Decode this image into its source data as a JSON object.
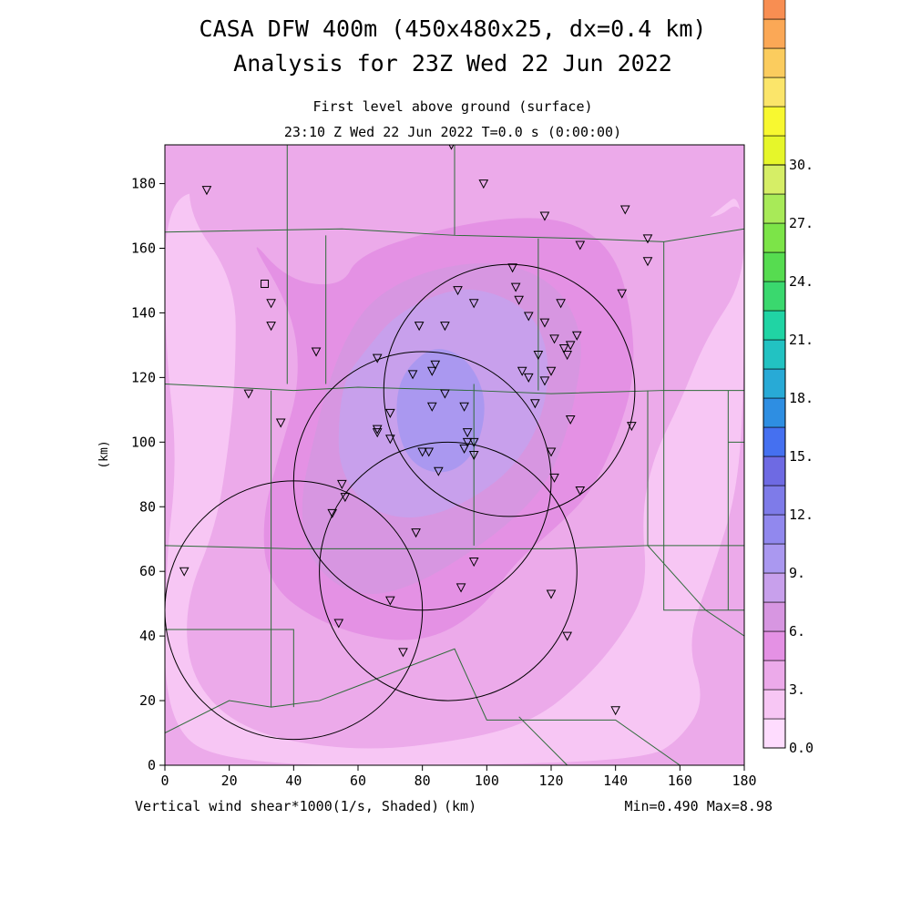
{
  "chart_data": {
    "type": "heatmap",
    "title": "CASA DFW 400m (450x480x25, dx=0.4 km)",
    "subtitle": "Analysis for 23Z Wed 22 Jun 2022",
    "level_label": "First level above ground (surface)",
    "time_label": "23:10 Z Wed 22 Jun 2022   T=0.0 s (0:00:00)",
    "xlabel": "(km)",
    "ylabel": "(km)",
    "field_label": "Vertical wind shear*1000(1/s, Shaded)",
    "stats_label": "Min=0.490 Max=8.98",
    "xlim": [
      0,
      180
    ],
    "ylim": [
      0,
      192
    ],
    "x_ticks": [
      "0",
      "20",
      "40",
      "60",
      "80",
      "100",
      "120",
      "140",
      "160",
      "180"
    ],
    "y_ticks": [
      "0",
      "20",
      "40",
      "60",
      "80",
      "100",
      "120",
      "140",
      "160",
      "180"
    ],
    "x_tick_values": [
      0,
      20,
      40,
      60,
      80,
      100,
      120,
      140,
      160,
      180
    ],
    "y_tick_values": [
      0,
      20,
      40,
      60,
      80,
      100,
      120,
      140,
      160,
      180
    ],
    "grid": false,
    "min": 0.49,
    "max": 8.98,
    "colorbar": {
      "placement": "right",
      "min": 0,
      "max": 30,
      "step": 1.5,
      "labels": [
        "0.0",
        "3.",
        "6.",
        "9.",
        "12.",
        "15.",
        "18.",
        "21.",
        "24.",
        "27.",
        "30."
      ],
      "label_values": [
        0,
        3,
        6,
        9,
        12,
        15,
        18,
        21,
        24,
        27,
        30
      ],
      "colors": [
        "#fedcfe",
        "#f7c6f4",
        "#ecaaea",
        "#e491e4",
        "#d796e1",
        "#c8a0ec",
        "#aa98f0",
        "#9188ee",
        "#7e7be9",
        "#6e6ae3",
        "#4570f0",
        "#2e8ee2",
        "#28aad6",
        "#22c2c2",
        "#20d4a4",
        "#3ad86e",
        "#56dc50",
        "#7ce448",
        "#a8ea58",
        "#d6ee66",
        "#e6f62a",
        "#f8f830",
        "#fbe56a",
        "#fbcc5e",
        "#fba856",
        "#f88e52",
        "#f86e48",
        "#f8463c",
        "#f84e70",
        "#fb5ba0"
      ]
    },
    "shading_levels": [
      {
        "level": 1.5,
        "polygon": [
          [
            0,
            178
          ],
          [
            20,
            176
          ],
          [
            50,
            168
          ],
          [
            80,
            164
          ],
          [
            110,
            158
          ],
          [
            135,
            152
          ],
          [
            158,
            160
          ],
          [
            172,
            172
          ],
          [
            180,
            178
          ],
          [
            180,
            120
          ],
          [
            178,
            85
          ],
          [
            170,
            60
          ],
          [
            162,
            38
          ],
          [
            168,
            20
          ],
          [
            160,
            8
          ],
          [
            150,
            2
          ],
          [
            100,
            0
          ],
          [
            20,
            0
          ],
          [
            0,
            12
          ],
          [
            0,
            60
          ],
          [
            4,
            95
          ],
          [
            0,
            130
          ]
        ]
      },
      {
        "level": 3.0,
        "polygon": [
          [
            10,
            192
          ],
          [
            50,
            186
          ],
          [
            80,
            182
          ],
          [
            110,
            180
          ],
          [
            135,
            178
          ],
          [
            155,
            174
          ],
          [
            170,
            168
          ],
          [
            180,
            176
          ],
          [
            180,
            150
          ],
          [
            168,
            132
          ],
          [
            160,
            112
          ],
          [
            152,
            96
          ],
          [
            148,
            78
          ],
          [
            150,
            55
          ],
          [
            142,
            40
          ],
          [
            130,
            26
          ],
          [
            115,
            14
          ],
          [
            95,
            8
          ],
          [
            60,
            4
          ],
          [
            25,
            10
          ],
          [
            8,
            26
          ],
          [
            6,
            50
          ],
          [
            16,
            74
          ],
          [
            20,
            100
          ],
          [
            22,
            122
          ],
          [
            22,
            150
          ],
          [
            6,
            172
          ]
        ]
      },
      {
        "level": 4.5,
        "polygon": [
          [
            25,
            165
          ],
          [
            38,
            150
          ],
          [
            55,
            148
          ],
          [
            60,
            158
          ],
          [
            85,
            166
          ],
          [
            110,
            170
          ],
          [
            128,
            168
          ],
          [
            140,
            158
          ],
          [
            145,
            140
          ],
          [
            146,
            120
          ],
          [
            140,
            100
          ],
          [
            132,
            84
          ],
          [
            122,
            74
          ],
          [
            108,
            62
          ],
          [
            100,
            50
          ],
          [
            86,
            40
          ],
          [
            70,
            38
          ],
          [
            48,
            44
          ],
          [
            32,
            56
          ],
          [
            30,
            76
          ],
          [
            36,
            98
          ],
          [
            42,
            118
          ],
          [
            40,
            140
          ]
        ]
      },
      {
        "level": 6.0,
        "polygon": [
          [
            56,
            132
          ],
          [
            64,
            144
          ],
          [
            78,
            152
          ],
          [
            96,
            156
          ],
          [
            112,
            154
          ],
          [
            124,
            146
          ],
          [
            130,
            132
          ],
          [
            128,
            116
          ],
          [
            124,
            100
          ],
          [
            118,
            86
          ],
          [
            106,
            74
          ],
          [
            92,
            64
          ],
          [
            78,
            56
          ],
          [
            64,
            52
          ],
          [
            52,
            56
          ],
          [
            44,
            66
          ],
          [
            42,
            82
          ],
          [
            46,
            100
          ],
          [
            50,
            116
          ]
        ]
      },
      {
        "level": 7.5,
        "polygon": [
          [
            62,
            128
          ],
          [
            72,
            140
          ],
          [
            90,
            148
          ],
          [
            104,
            146
          ],
          [
            116,
            138
          ],
          [
            120,
            122
          ],
          [
            116,
            104
          ],
          [
            108,
            92
          ],
          [
            98,
            84
          ],
          [
            86,
            78
          ],
          [
            74,
            76
          ],
          [
            62,
            80
          ],
          [
            54,
            92
          ],
          [
            54,
            108
          ],
          [
            56,
            120
          ]
        ]
      },
      {
        "level": 9.0,
        "polygon": [
          [
            76,
            124
          ],
          [
            84,
            130
          ],
          [
            94,
            126
          ],
          [
            100,
            114
          ],
          [
            98,
            100
          ],
          [
            92,
            92
          ],
          [
            84,
            90
          ],
          [
            76,
            94
          ],
          [
            72,
            104
          ],
          [
            72,
            116
          ]
        ]
      }
    ],
    "radar_rings": [
      {
        "center": [
          80,
          88
        ],
        "radius": 40
      },
      {
        "center": [
          107,
          116
        ],
        "radius": 39
      },
      {
        "center": [
          40,
          48
        ],
        "radius": 40
      },
      {
        "center": [
          88,
          60
        ],
        "radius": 40
      }
    ],
    "boundaries": [
      [
        [
          0,
          165
        ],
        [
          55,
          166
        ],
        [
          90,
          164
        ],
        [
          130,
          163
        ],
        [
          155,
          162
        ],
        [
          180,
          166
        ]
      ],
      [
        [
          0,
          118
        ],
        [
          40,
          116
        ],
        [
          60,
          117
        ],
        [
          95,
          116
        ],
        [
          120,
          115
        ],
        [
          155,
          116
        ],
        [
          180,
          116
        ]
      ],
      [
        [
          0,
          68
        ],
        [
          40,
          67
        ],
        [
          80,
          67
        ],
        [
          120,
          67
        ],
        [
          150,
          68
        ],
        [
          180,
          68
        ]
      ],
      [
        [
          38,
          192
        ],
        [
          38,
          118
        ]
      ],
      [
        [
          90,
          192
        ],
        [
          90,
          164
        ]
      ],
      [
        [
          50,
          164
        ],
        [
          50,
          118
        ]
      ],
      [
        [
          96,
          118
        ],
        [
          96,
          68
        ]
      ],
      [
        [
          116,
          163
        ],
        [
          116,
          116
        ]
      ],
      [
        [
          155,
          162
        ],
        [
          155,
          116
        ]
      ],
      [
        [
          150,
          116
        ],
        [
          150,
          68
        ]
      ],
      [
        [
          33,
          116
        ],
        [
          33,
          67
        ]
      ],
      [
        [
          155,
          116
        ],
        [
          155,
          48
        ],
        [
          180,
          48
        ]
      ],
      [
        [
          175,
          116
        ],
        [
          175,
          48
        ]
      ],
      [
        [
          180,
          100
        ],
        [
          175,
          100
        ]
      ],
      [
        [
          33,
          67
        ],
        [
          33,
          18
        ],
        [
          48,
          20
        ],
        [
          90,
          36
        ],
        [
          100,
          14
        ],
        [
          140,
          14
        ],
        [
          160,
          0
        ]
      ],
      [
        [
          0,
          42
        ],
        [
          40,
          42
        ],
        [
          40,
          18
        ]
      ],
      [
        [
          0,
          32
        ],
        [
          0,
          10
        ],
        [
          20,
          20
        ],
        [
          33,
          18
        ]
      ],
      [
        [
          150,
          68
        ],
        [
          168,
          48
        ],
        [
          180,
          40
        ]
      ],
      [
        [
          110,
          15
        ],
        [
          125,
          0
        ]
      ]
    ],
    "stations_triangle": [
      [
        13,
        178
      ],
      [
        89,
        192
      ],
      [
        99,
        180
      ],
      [
        118,
        170
      ],
      [
        129,
        161
      ],
      [
        143,
        172
      ],
      [
        150,
        163
      ],
      [
        150,
        156
      ],
      [
        33,
        143
      ],
      [
        33,
        136
      ],
      [
        47,
        128
      ],
      [
        26,
        115
      ],
      [
        36,
        106
      ],
      [
        6,
        60
      ],
      [
        91,
        147
      ],
      [
        96,
        143
      ],
      [
        108,
        154
      ],
      [
        109,
        148
      ],
      [
        110,
        144
      ],
      [
        113,
        139
      ],
      [
        118,
        137
      ],
      [
        121,
        132
      ],
      [
        124,
        129
      ],
      [
        125,
        127
      ],
      [
        126,
        130
      ],
      [
        128,
        133
      ],
      [
        120,
        122
      ],
      [
        116,
        127
      ],
      [
        123,
        143
      ],
      [
        142,
        146
      ],
      [
        79,
        136
      ],
      [
        87,
        136
      ],
      [
        66,
        126
      ],
      [
        77,
        121
      ],
      [
        83,
        122
      ],
      [
        84,
        124
      ],
      [
        87,
        115
      ],
      [
        83,
        111
      ],
      [
        93,
        111
      ],
      [
        96,
        96
      ],
      [
        111,
        122
      ],
      [
        113,
        120
      ],
      [
        118,
        119
      ],
      [
        115,
        112
      ],
      [
        126,
        107
      ],
      [
        145,
        105
      ],
      [
        70,
        109
      ],
      [
        66,
        104
      ],
      [
        66,
        103
      ],
      [
        70,
        101
      ],
      [
        80,
        97
      ],
      [
        82,
        97
      ],
      [
        85,
        91
      ],
      [
        93,
        98
      ],
      [
        94,
        103
      ],
      [
        94,
        100
      ],
      [
        96,
        100
      ],
      [
        120,
        97
      ],
      [
        121,
        89
      ],
      [
        129,
        85
      ],
      [
        55,
        87
      ],
      [
        56,
        83
      ],
      [
        52,
        78
      ],
      [
        78,
        72
      ],
      [
        96,
        63
      ],
      [
        92,
        55
      ],
      [
        70,
        51
      ],
      [
        54,
        44
      ],
      [
        120,
        53
      ],
      [
        125,
        40
      ],
      [
        74,
        35
      ],
      [
        140,
        17
      ]
    ],
    "stations_square": [
      [
        31,
        149
      ]
    ]
  }
}
